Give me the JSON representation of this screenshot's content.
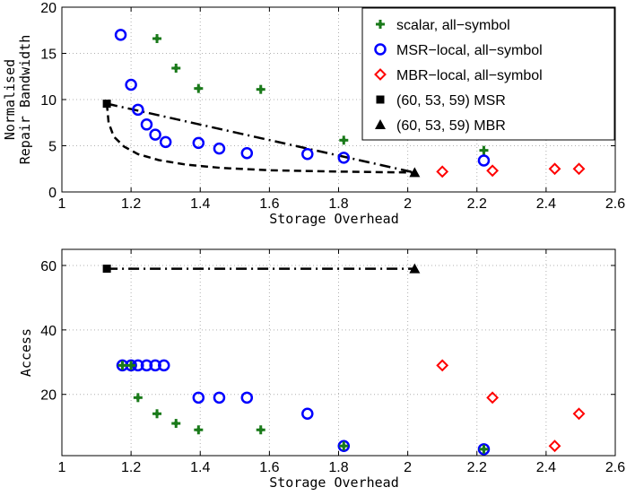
{
  "colors": {
    "scalar": "#1a7a1a",
    "msr_local": "#0000ff",
    "mbr_local": "#ff0000",
    "ref": "#000000"
  },
  "legend": {
    "placement": "top-right",
    "entries": [
      {
        "key": "scalar",
        "label": "scalar, all−symbol",
        "marker": "plus"
      },
      {
        "key": "msr_local",
        "label": "MSR−local, all−symbol",
        "marker": "circle"
      },
      {
        "key": "mbr_local",
        "label": "MBR−local, all−symbol",
        "marker": "diamond"
      },
      {
        "key": "msr_ref",
        "label": "(60, 53, 59) MSR",
        "marker": "square"
      },
      {
        "key": "mbr_ref",
        "label": "(60, 53, 59) MBR",
        "marker": "triangle"
      }
    ]
  },
  "chart_data": [
    {
      "type": "scatter",
      "xlabel": "Storage Overhead",
      "ylabel_lines": [
        "Normalised",
        "Repair Bandwidth"
      ],
      "xlim": [
        1,
        2.6
      ],
      "ylim": [
        0,
        20
      ],
      "xticks": [
        1,
        1.2,
        1.4,
        1.6,
        1.8,
        2,
        2.2,
        2.4,
        2.6
      ],
      "xtick_labels": [
        "1",
        "1.2",
        "1.4",
        "1.6",
        "1.8",
        "2",
        "2.2",
        "2.4",
        "2.6"
      ],
      "yticks": [
        0,
        5,
        10,
        15,
        20
      ],
      "ytick_labels": [
        "0",
        "5",
        "10",
        "15",
        "20"
      ],
      "grid": true,
      "series": [
        {
          "key": "scalar",
          "points": [
            [
              1.275,
              16.6
            ],
            [
              1.33,
              13.4
            ],
            [
              1.395,
              11.2
            ],
            [
              1.575,
              11.1
            ],
            [
              1.815,
              5.6
            ],
            [
              2.22,
              4.5
            ]
          ]
        },
        {
          "key": "msr_local",
          "points": [
            [
              1.17,
              17.0
            ],
            [
              1.2,
              11.6
            ],
            [
              1.22,
              8.9
            ],
            [
              1.245,
              7.3
            ],
            [
              1.27,
              6.2
            ],
            [
              1.3,
              5.4
            ],
            [
              1.395,
              5.3
            ],
            [
              1.455,
              4.7
            ],
            [
              1.535,
              4.2
            ],
            [
              1.71,
              4.1
            ],
            [
              1.815,
              3.7
            ],
            [
              2.22,
              3.4
            ]
          ]
        },
        {
          "key": "mbr_local",
          "points": [
            [
              2.1,
              2.2
            ],
            [
              2.245,
              2.3
            ],
            [
              2.425,
              2.5
            ],
            [
              2.495,
              2.5
            ]
          ]
        },
        {
          "key": "msr_ref",
          "points": [
            [
              1.13,
              9.55
            ]
          ]
        },
        {
          "key": "mbr_ref",
          "points": [
            [
              2.02,
              2.1
            ]
          ]
        }
      ],
      "curves": [
        {
          "style": "dashdot",
          "points": [
            [
              1.13,
              9.55
            ],
            [
              2.02,
              2.1
            ]
          ]
        },
        {
          "style": "dashed",
          "points": [
            [
              1.13,
              9.55
            ],
            [
              1.135,
              7.5
            ],
            [
              1.15,
              6.0
            ],
            [
              1.18,
              4.9
            ],
            [
              1.22,
              4.1
            ],
            [
              1.28,
              3.45
            ],
            [
              1.36,
              2.95
            ],
            [
              1.46,
              2.6
            ],
            [
              1.6,
              2.35
            ],
            [
              1.8,
              2.2
            ],
            [
              2.02,
              2.1
            ]
          ]
        }
      ],
      "legend": true
    },
    {
      "type": "scatter",
      "xlabel": "Storage Overhead",
      "ylabel_lines": [
        "Access"
      ],
      "xlim": [
        1,
        2.6
      ],
      "ylim": [
        1,
        65
      ],
      "xticks": [
        1,
        1.2,
        1.4,
        1.6,
        1.8,
        2,
        2.2,
        2.4,
        2.6
      ],
      "xtick_labels": [
        "1",
        "1.2",
        "1.4",
        "1.6",
        "1.8",
        "2",
        "2.2",
        "2.4",
        "2.6"
      ],
      "yticks": [
        20,
        40,
        60
      ],
      "ytick_labels": [
        "20",
        "40",
        "60"
      ],
      "grid": true,
      "series": [
        {
          "key": "msr_local",
          "points": [
            [
              1.175,
              29
            ],
            [
              1.2,
              29
            ],
            [
              1.22,
              29
            ],
            [
              1.245,
              29
            ],
            [
              1.27,
              29
            ],
            [
              1.295,
              29
            ],
            [
              1.395,
              19
            ],
            [
              1.455,
              19
            ],
            [
              1.535,
              19
            ],
            [
              1.71,
              14
            ],
            [
              1.815,
              4
            ],
            [
              2.22,
              3
            ]
          ]
        },
        {
          "key": "scalar",
          "points": [
            [
              1.175,
              29
            ],
            [
              1.2,
              29
            ],
            [
              1.22,
              19
            ],
            [
              1.275,
              14
            ],
            [
              1.33,
              11
            ],
            [
              1.395,
              9
            ],
            [
              1.575,
              9
            ],
            [
              1.815,
              4
            ],
            [
              2.22,
              3
            ]
          ]
        },
        {
          "key": "mbr_local",
          "points": [
            [
              2.1,
              29
            ],
            [
              2.245,
              19
            ],
            [
              2.425,
              4
            ],
            [
              2.495,
              14
            ]
          ]
        },
        {
          "key": "msr_ref",
          "points": [
            [
              1.13,
              59
            ]
          ]
        },
        {
          "key": "mbr_ref",
          "points": [
            [
              2.02,
              59
            ]
          ]
        }
      ],
      "curves": [
        {
          "style": "dashdot",
          "points": [
            [
              1.13,
              59
            ],
            [
              2.02,
              59
            ]
          ]
        }
      ],
      "legend": false
    }
  ]
}
